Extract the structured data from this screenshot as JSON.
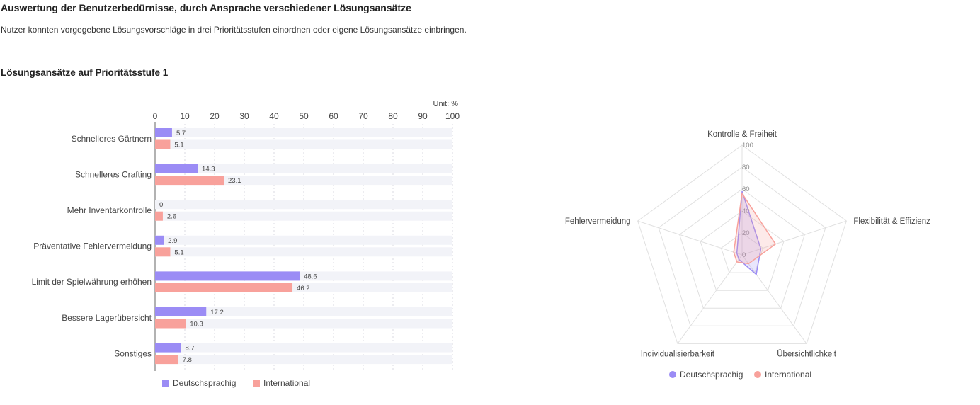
{
  "header": {
    "title": "Auswertung der Benutzerbedürnisse, durch Ansprache verschiedener Lösungsansätze",
    "subtitle": "Nutzer konnten vorgegebene Lösungsvorschläge in drei Prioritätsstufen einordnen oder eigene Lösungsansätze einbringen.",
    "section": "Lösungsansätze auf Prioritätsstufe 1"
  },
  "colors": {
    "series_a": "#9b8cf5",
    "series_b": "#f8a19b",
    "track": "#f2f3f8",
    "grid": "#d8d8e0",
    "radar_grid": "#e0e0e0"
  },
  "chart_data": [
    {
      "type": "bar",
      "orientation": "horizontal",
      "unit_label": "Unit: %",
      "categories": [
        "Schnelleres Gärtnern",
        "Schnelleres Crafting",
        "Mehr Inventarkontrolle",
        "Präventative Fehlervermeidung",
        "Limit der Spielwährung erhöhen",
        "Bessere Lagerübersicht",
        "Sonstiges"
      ],
      "series": [
        {
          "name": "Deutschsprachig",
          "values": [
            5.7,
            14.3,
            0,
            2.9,
            48.6,
            17.2,
            8.7
          ]
        },
        {
          "name": "International",
          "values": [
            5.1,
            23.1,
            2.6,
            5.1,
            46.2,
            10.3,
            7.8
          ]
        }
      ],
      "xlim": [
        0,
        100
      ],
      "xticks": [
        0,
        10,
        20,
        30,
        40,
        50,
        60,
        70,
        80,
        90,
        100
      ],
      "grid": true,
      "legend_position": "bottom-left"
    },
    {
      "type": "radar",
      "axes": [
        "Kontrolle & Freiheit",
        "Flexibilität & Effizienz",
        "Übersichtlichkeit",
        "Individualisierbarkeit",
        "Fehlervermeidung"
      ],
      "series": [
        {
          "name": "Deutschsprachig",
          "values": [
            58,
            18,
            22,
            5,
            5
          ]
        },
        {
          "name": "International",
          "values": [
            56,
            32,
            10,
            8,
            8
          ]
        }
      ],
      "rlim": [
        0,
        100
      ],
      "rticks": [
        0,
        20,
        40,
        60,
        80,
        100
      ],
      "legend_position": "bottom-center"
    }
  ]
}
